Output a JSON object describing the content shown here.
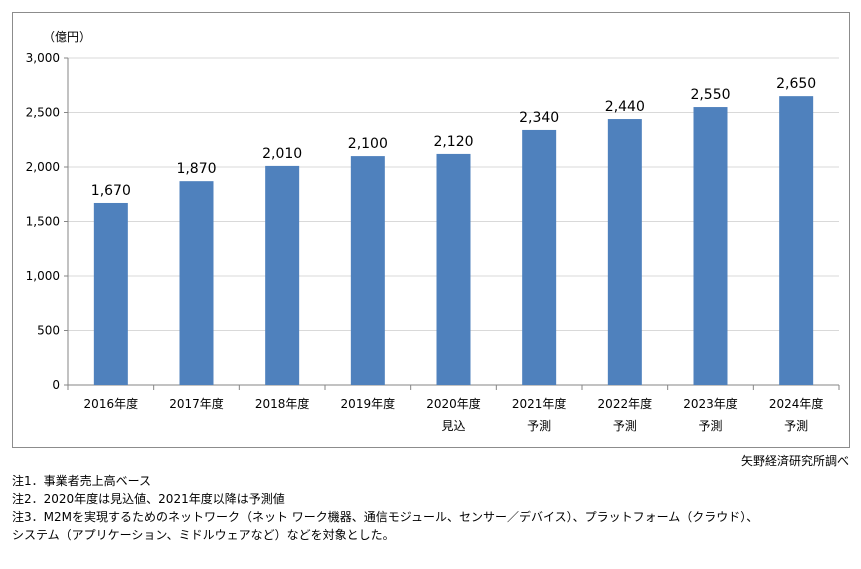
{
  "chart_data": {
    "type": "bar",
    "unit_label": "（億円）",
    "categories": [
      [
        "2016年度"
      ],
      [
        "2017年度"
      ],
      [
        "2018年度"
      ],
      [
        "2019年度"
      ],
      [
        "2020年度",
        "見込"
      ],
      [
        "2021年度",
        "予測"
      ],
      [
        "2022年度",
        "予測"
      ],
      [
        "2023年度",
        "予測"
      ],
      [
        "2024年度",
        "予測"
      ]
    ],
    "values": [
      1670,
      1870,
      2010,
      2100,
      2120,
      2340,
      2440,
      2550,
      2650
    ],
    "value_labels": [
      "1,670",
      "1,870",
      "2,010",
      "2,100",
      "2,120",
      "2,340",
      "2,440",
      "2,550",
      "2,650"
    ],
    "ylim": [
      0,
      3000
    ],
    "yticks": [
      0,
      500,
      1000,
      1500,
      2000,
      2500,
      3000
    ],
    "ytick_labels": [
      "0",
      "500",
      "1,000",
      "1,500",
      "2,000",
      "2,500",
      "3,000"
    ],
    "grid": true,
    "bar_color": "#4f81bd",
    "grid_color": "#d9d9d9"
  },
  "source": "矢野経済研究所調べ",
  "notes": [
    "注1．事業者売上高ベース",
    "注2．2020年度は見込値、2021年度以降は予測値",
    "注3．M2Mを実現するためのネットワーク（ネット ワーク機器、通信モジュール、センサー／デバイス）、プラットフォーム（クラウド）、",
    "システム（アプリケーション、ミドルウェアなど）などを対象とした。"
  ]
}
